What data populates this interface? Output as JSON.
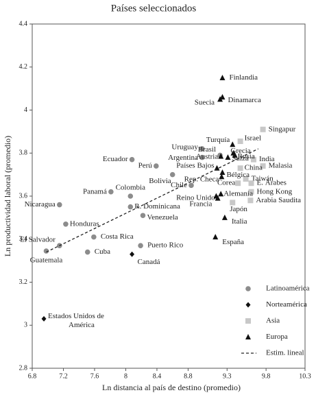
{
  "chart_data": {
    "type": "scatter",
    "title": "Países seleccionados",
    "x_label": "Ln distancia al país de destino (promedio)",
    "y_label": "Ln productividad laboral (promedio)",
    "xlim": [
      6.8,
      10.3
    ],
    "ylim": [
      2.8,
      4.4
    ],
    "xticks": [
      6.8,
      7.2,
      7.6,
      8,
      8.4,
      8.8,
      9.3,
      9.8,
      10.3
    ],
    "yticks": [
      2.8,
      3,
      3.2,
      3.4,
      3.6,
      3.8,
      4,
      4.2,
      4.4
    ],
    "series": [
      {
        "name": "Latinoamérica",
        "marker": "circle",
        "color": "#8c8c8c",
        "labels": [
          "Guatemala",
          "El Salvador",
          "Nicaragua",
          "Honduras",
          "Cuba",
          "Costa Rica",
          "Panamá",
          "Colombia",
          "R. Dominicana",
          "Venezuela",
          "Puerto Rico",
          "Ecuador",
          "Perú",
          "Bolivia",
          "Chile",
          "Uruguay",
          "Argentina",
          "Brasil"
        ],
        "x": [
          6.98,
          7.15,
          7.15,
          7.23,
          7.51,
          7.59,
          7.81,
          8.06,
          8.06,
          8.22,
          8.19,
          8.08,
          8.39,
          8.6,
          8.84,
          8.98,
          8.98,
          9.21
        ],
        "y": [
          3.345,
          3.37,
          3.56,
          3.47,
          3.34,
          3.41,
          3.62,
          3.6,
          3.55,
          3.51,
          3.37,
          3.77,
          3.74,
          3.7,
          3.65,
          3.82,
          3.78,
          3.79
        ]
      },
      {
        "name": "Norteamérica",
        "marker": "diamond",
        "color": "#111111",
        "labels": [
          "Estados Unidos de América",
          "Canadá"
        ],
        "x": [
          6.95,
          8.08
        ],
        "y": [
          3.03,
          3.33
        ]
      },
      {
        "name": "Asia",
        "marker": "square",
        "color": "#c8c8c8",
        "labels": [
          "Singapur",
          "Israel",
          "India",
          "Malasia",
          "China",
          "Taiwán",
          "Corea",
          "E. Árabes",
          "Hong Kong",
          "Arabia Saudita",
          "Japón"
        ],
        "x": [
          9.76,
          9.47,
          9.64,
          9.76,
          9.47,
          9.54,
          9.44,
          9.61,
          9.61,
          9.6,
          9.37
        ],
        "y": [
          3.91,
          3.855,
          3.77,
          3.74,
          3.73,
          3.68,
          3.66,
          3.66,
          3.62,
          3.58,
          3.57
        ]
      },
      {
        "name": "Europa",
        "marker": "triangle",
        "color": "#111111",
        "labels": [
          "Finlandia",
          "Suecia",
          "Dinamarca",
          "Turquía",
          "Grecia",
          "Rusia",
          "Austria",
          "Suiza",
          "Países Bajos",
          "Bélgica",
          "Rep. Checa",
          "Reino Unido",
          "Alemania",
          "Francia",
          "Italia",
          "España"
        ],
        "x": [
          9.24,
          9.21,
          9.24,
          9.37,
          9.38,
          9.4,
          9.22,
          9.31,
          9.17,
          9.24,
          9.23,
          9.18,
          9.22,
          9.16,
          9.27,
          9.15
        ],
        "y": [
          4.15,
          4.05,
          4.06,
          3.84,
          3.8,
          3.79,
          3.785,
          3.78,
          3.73,
          3.71,
          3.69,
          3.59,
          3.61,
          3.6,
          3.5,
          3.41
        ]
      }
    ],
    "trend": {
      "name": "Estim. lineal",
      "x": [
        6.98,
        9.7
      ],
      "y": [
        3.34,
        3.82
      ]
    }
  }
}
